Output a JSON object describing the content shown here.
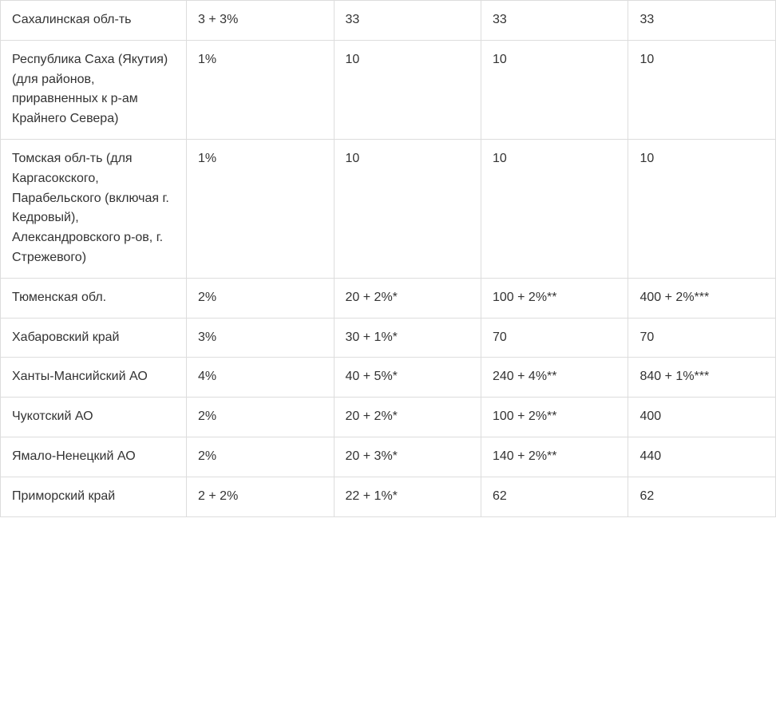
{
  "table": {
    "type": "table",
    "background_color": "#ffffff",
    "border_color": "#dddddd",
    "text_color": "#333333",
    "font_size_pt": 12,
    "column_widths_pct": [
      24,
      19,
      19,
      19,
      19
    ],
    "cell_alignment": "left",
    "cell_vertical_align": "top",
    "rows": [
      {
        "region": "Сахалинская обл-ть",
        "c1": "3 + 3%",
        "c2": "33",
        "c3": "33",
        "c4": "33"
      },
      {
        "region": "Республика Саха (Якутия) (для районов, приравненных к р-ам Крайнего Севера)",
        "c1": "1%",
        "c2": "10",
        "c3": "10",
        "c4": "10"
      },
      {
        "region": "Томская обл-ть (для Каргасокского, Парабельского (включая г. Кедровый), Александровского р-ов, г. Стрежевого)",
        "c1": "1%",
        "c2": "10",
        "c3": "10",
        "c4": "10"
      },
      {
        "region": "Тюменская обл.",
        "c1": "2%",
        "c2": "20 + 2%*",
        "c3": "100 + 2%**",
        "c4": "400 + 2%***"
      },
      {
        "region": "Хабаровский край",
        "c1": "3%",
        "c2": "30 + 1%*",
        "c3": "70",
        "c4": "70"
      },
      {
        "region": "Ханты-Мансийский АО",
        "c1": "4%",
        "c2": "40 + 5%*",
        "c3": "240 + 4%**",
        "c4": "840 + 1%***"
      },
      {
        "region": "Чукотский АО",
        "c1": "2%",
        "c2": "20 + 2%*",
        "c3": "100 + 2%**",
        "c4": "400"
      },
      {
        "region": "Ямало-Ненецкий АО",
        "c1": "2%",
        "c2": "20 + 3%*",
        "c3": "140 + 2%**",
        "c4": "440"
      },
      {
        "region": "Приморский край",
        "c1": "2 + 2%",
        "c2": "22 + 1%*",
        "c3": "62",
        "c4": "62"
      }
    ]
  }
}
